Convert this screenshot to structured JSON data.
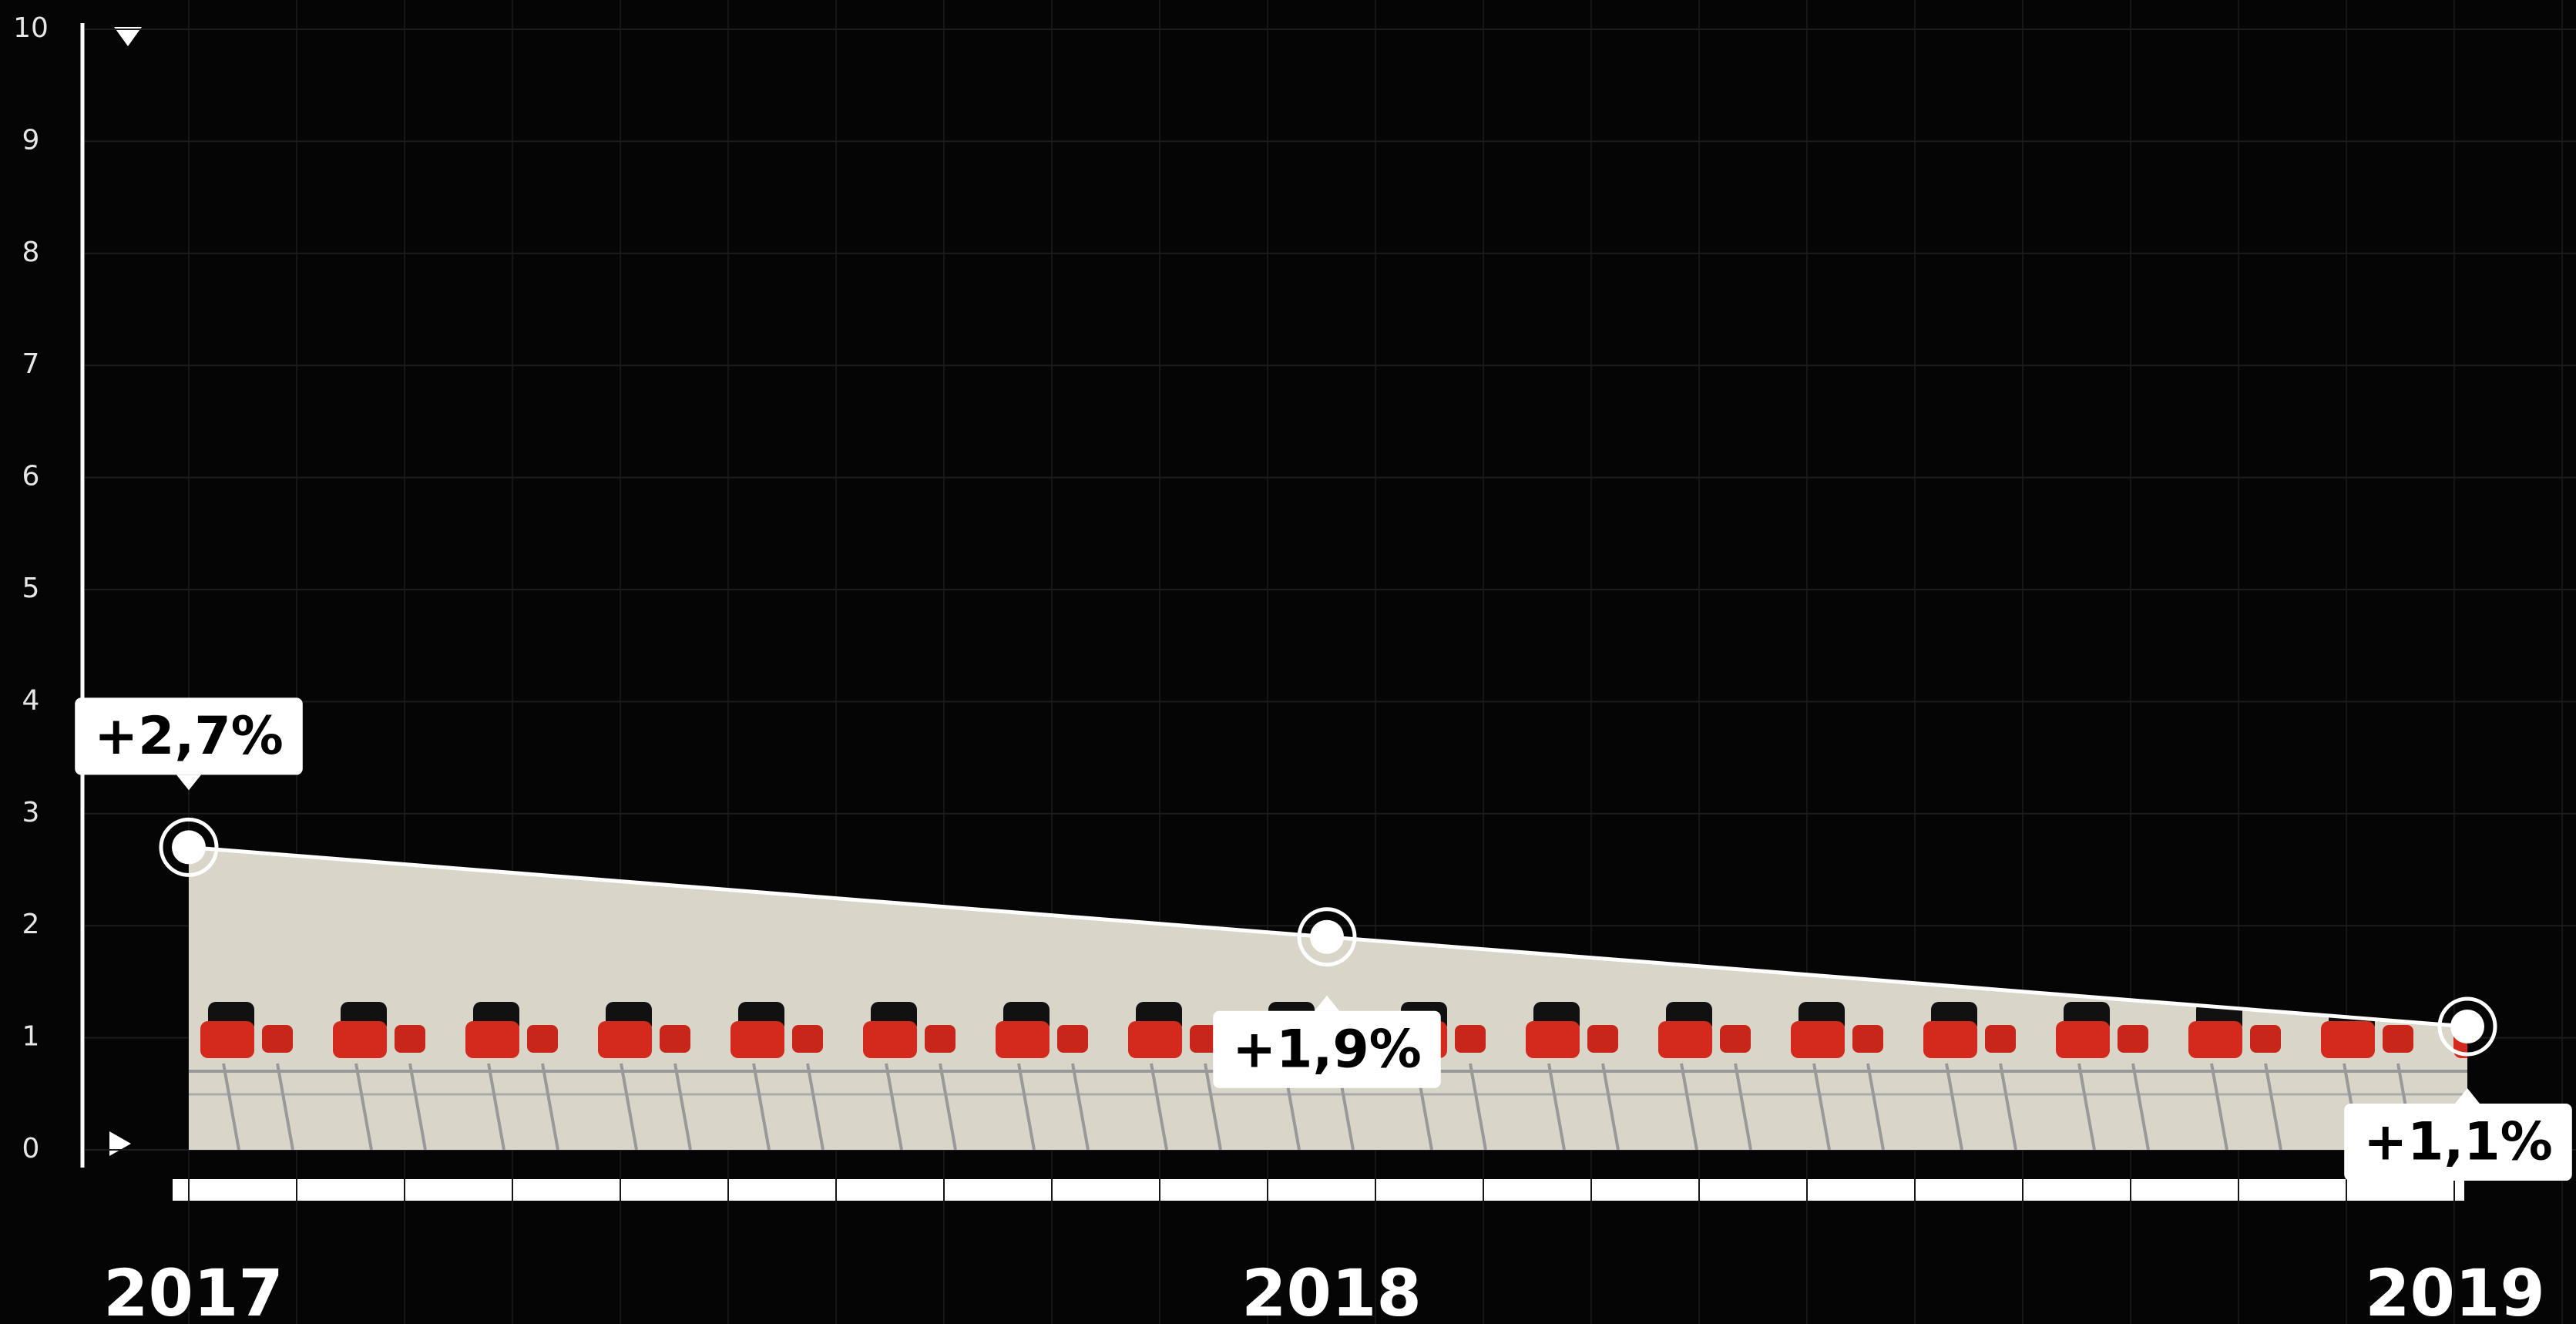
{
  "chart_data": {
    "type": "area",
    "categories": [
      "2017",
      "2018",
      "2019"
    ],
    "values": [
      2.7,
      1.9,
      1.1
    ],
    "value_labels": [
      "+2,7%",
      "+1,9%",
      "+1,1%"
    ],
    "ylim": [
      0,
      10
    ],
    "yticks": [
      0,
      1,
      2,
      3,
      4,
      5,
      6,
      7,
      8,
      9,
      10
    ],
    "grid": true,
    "color": "#d9d5c9"
  }
}
